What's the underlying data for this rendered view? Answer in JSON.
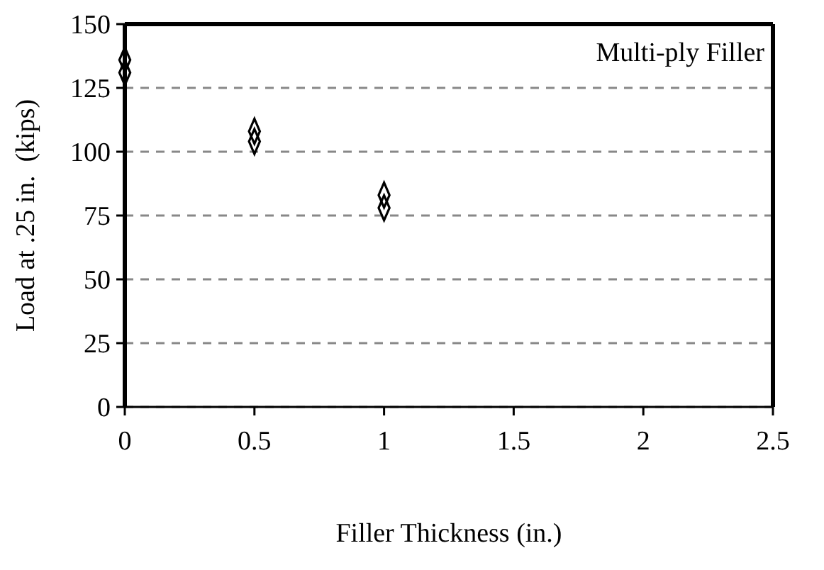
{
  "chart_data": {
    "type": "scatter",
    "xlabel": "Filler Thickness (in.)",
    "ylabel": "Load at .25 in.  (kips)",
    "annotations": [
      "Multi-ply Filler"
    ],
    "x": [
      0,
      0,
      0.5,
      0.5,
      1,
      1
    ],
    "values": [
      136,
      131,
      108,
      104,
      83,
      78
    ],
    "color": "#000000",
    "marker": "diamond",
    "xlim": [
      0,
      2.5
    ],
    "xticks": [
      0,
      0.5,
      1,
      1.5,
      2,
      2.5
    ],
    "ylim": [
      0,
      150
    ],
    "yticks": [
      0,
      25,
      50,
      75,
      100,
      125,
      150
    ],
    "grid": "y"
  }
}
